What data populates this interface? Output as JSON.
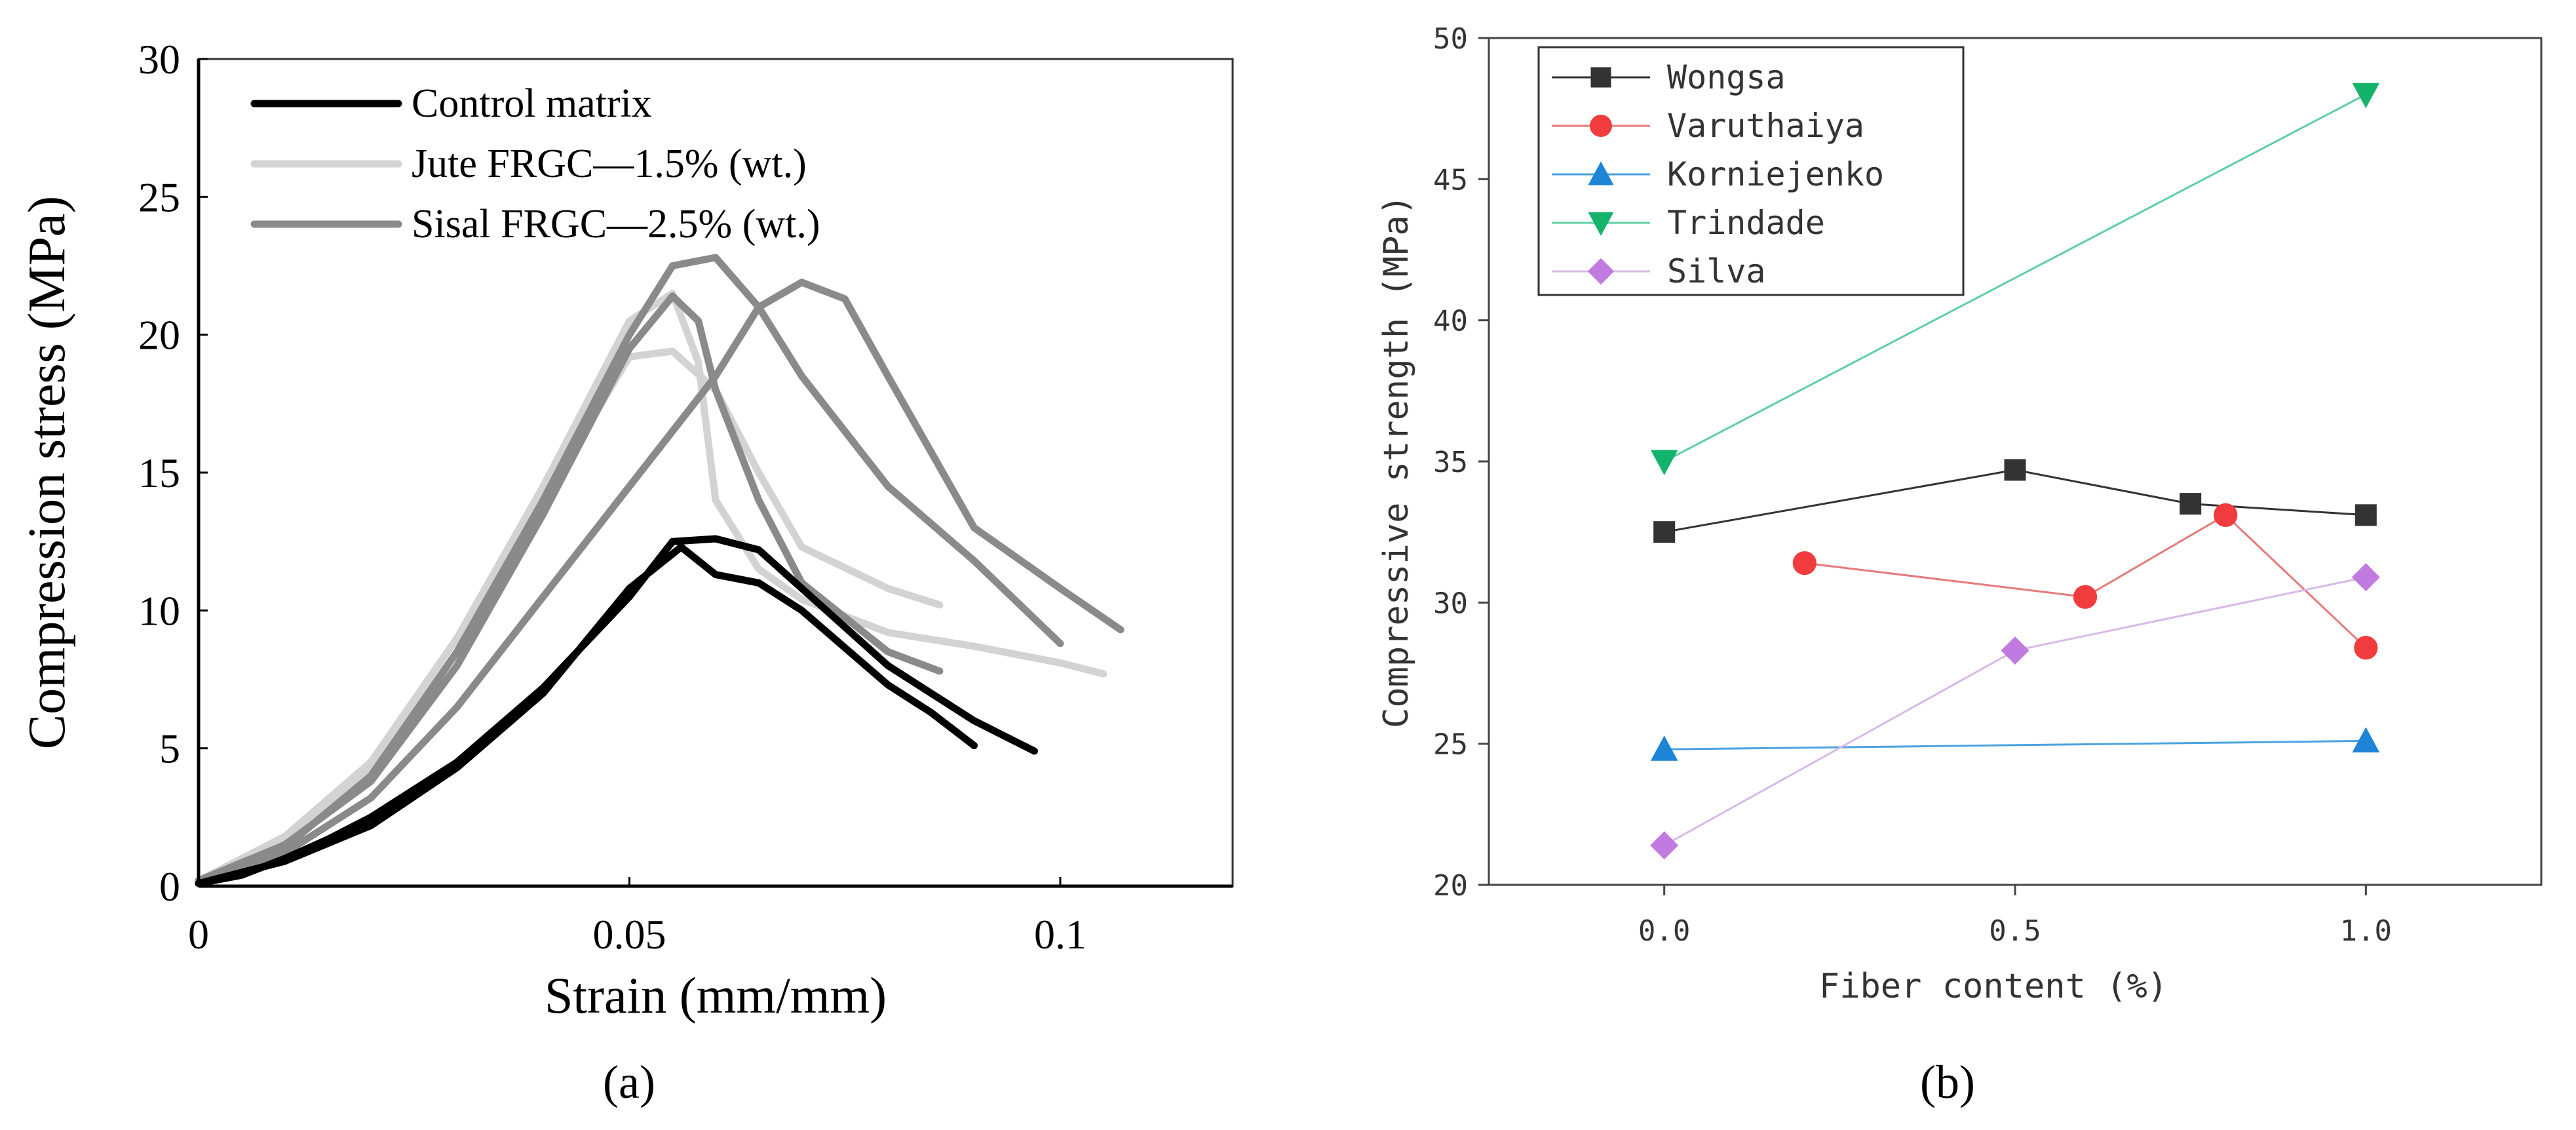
{
  "chart_data": [
    {
      "panel_label": "(a)",
      "type": "line",
      "xlabel": "Strain (mm/mm)",
      "ylabel": "Compression stress (MPa)",
      "xlim": [
        0,
        0.12
      ],
      "ylim": [
        0,
        30
      ],
      "xticks": [
        0,
        0.05,
        0.1
      ],
      "xtick_labels": [
        "0",
        "0.05",
        "0.1"
      ],
      "yticks": [
        0,
        5,
        10,
        15,
        20,
        25,
        30
      ],
      "ytick_labels": [
        "0",
        "5",
        "10",
        "15",
        "20",
        "25",
        "30"
      ],
      "legend": [
        {
          "label": "Control matrix",
          "color": "#000000"
        },
        {
          "label": "Jute FRGC—1.5% (wt.)",
          "color": "#d3d3d3"
        },
        {
          "label": "Sisal FRGC—2.5% (wt.)",
          "color": "#8a8a8a"
        }
      ],
      "series": [
        {
          "name": "Control matrix",
          "color": "#000000",
          "points": [
            [
              0,
              0.1
            ],
            [
              0.005,
              0.4
            ],
            [
              0.01,
              1.0
            ],
            [
              0.015,
              1.7
            ],
            [
              0.02,
              2.5
            ],
            [
              0.03,
              4.5
            ],
            [
              0.04,
              7.2
            ],
            [
              0.05,
              10.5
            ],
            [
              0.055,
              12.5
            ],
            [
              0.06,
              12.6
            ],
            [
              0.065,
              12.2
            ],
            [
              0.07,
              10.8
            ],
            [
              0.08,
              8.0
            ],
            [
              0.09,
              6.0
            ],
            [
              0.097,
              4.9
            ]
          ]
        },
        {
          "name": "Control matrix",
          "color": "#000000",
          "points": [
            [
              0,
              0.1
            ],
            [
              0.01,
              0.9
            ],
            [
              0.02,
              2.2
            ],
            [
              0.03,
              4.3
            ],
            [
              0.04,
              7.0
            ],
            [
              0.05,
              10.8
            ],
            [
              0.056,
              12.3
            ],
            [
              0.06,
              11.3
            ],
            [
              0.065,
              11.0
            ],
            [
              0.07,
              10.0
            ],
            [
              0.08,
              7.3
            ],
            [
              0.085,
              6.3
            ],
            [
              0.09,
              5.1
            ]
          ]
        },
        {
          "name": "Jute FRGC—1.5% (wt.)",
          "color": "#d3d3d3",
          "points": [
            [
              0,
              0.2
            ],
            [
              0.01,
              1.8
            ],
            [
              0.02,
              4.5
            ],
            [
              0.03,
              9.0
            ],
            [
              0.04,
              14.5
            ],
            [
              0.05,
              20.5
            ],
            [
              0.055,
              21.5
            ],
            [
              0.058,
              19.0
            ],
            [
              0.06,
              14.0
            ],
            [
              0.065,
              11.5
            ],
            [
              0.07,
              10.4
            ],
            [
              0.08,
              9.2
            ],
            [
              0.09,
              8.7
            ],
            [
              0.1,
              8.1
            ],
            [
              0.105,
              7.7
            ]
          ]
        },
        {
          "name": "Jute FRGC—1.5% (wt.)",
          "color": "#d3d3d3",
          "points": [
            [
              0,
              0.2
            ],
            [
              0.01,
              1.6
            ],
            [
              0.02,
              4.2
            ],
            [
              0.03,
              8.5
            ],
            [
              0.04,
              14.0
            ],
            [
              0.05,
              19.2
            ],
            [
              0.055,
              19.4
            ],
            [
              0.06,
              18.0
            ],
            [
              0.065,
              15.0
            ],
            [
              0.07,
              12.3
            ],
            [
              0.08,
              10.8
            ],
            [
              0.086,
              10.2
            ]
          ]
        },
        {
          "name": "Sisal FRGC—2.5% (wt.)",
          "color": "#8a8a8a",
          "points": [
            [
              0,
              0.2
            ],
            [
              0.01,
              1.5
            ],
            [
              0.02,
              3.8
            ],
            [
              0.03,
              8.0
            ],
            [
              0.04,
              13.5
            ],
            [
              0.05,
              19.5
            ],
            [
              0.055,
              21.4
            ],
            [
              0.058,
              20.5
            ],
            [
              0.06,
              18.0
            ],
            [
              0.065,
              14.0
            ],
            [
              0.07,
              11.0
            ],
            [
              0.08,
              8.5
            ],
            [
              0.086,
              7.8
            ]
          ]
        },
        {
          "name": "Sisal FRGC—2.5% (wt.)",
          "color": "#8a8a8a",
          "points": [
            [
              0,
              0.2
            ],
            [
              0.01,
              1.4
            ],
            [
              0.02,
              4.0
            ],
            [
              0.03,
              8.5
            ],
            [
              0.04,
              14.0
            ],
            [
              0.05,
              20.0
            ],
            [
              0.055,
              22.5
            ],
            [
              0.06,
              22.8
            ],
            [
              0.065,
              21.0
            ],
            [
              0.07,
              18.5
            ],
            [
              0.08,
              14.5
            ],
            [
              0.09,
              11.8
            ],
            [
              0.1,
              8.8
            ]
          ]
        },
        {
          "name": "Sisal FRGC—2.5% (wt.)",
          "color": "#8a8a8a",
          "points": [
            [
              0,
              0.2
            ],
            [
              0.01,
              1.2
            ],
            [
              0.02,
              3.2
            ],
            [
              0.03,
              6.5
            ],
            [
              0.04,
              10.5
            ],
            [
              0.05,
              14.5
            ],
            [
              0.06,
              18.5
            ],
            [
              0.065,
              21.0
            ],
            [
              0.07,
              21.9
            ],
            [
              0.075,
              21.3
            ],
            [
              0.08,
              18.5
            ],
            [
              0.09,
              13.0
            ],
            [
              0.1,
              10.8
            ],
            [
              0.107,
              9.3
            ]
          ]
        }
      ]
    },
    {
      "panel_label": "(b)",
      "type": "line",
      "xlabel": "Fiber content (%)",
      "ylabel": "Compressive strength (MPa)",
      "xlim": [
        -0.25,
        1.25
      ],
      "ylim": [
        20,
        50
      ],
      "xticks": [
        0,
        0.5,
        1.0
      ],
      "xtick_labels": [
        "0.0",
        "0.5",
        "1.0"
      ],
      "yticks": [
        20,
        25,
        30,
        35,
        40,
        45,
        50
      ],
      "ytick_labels": [
        "20",
        "25",
        "30",
        "35",
        "40",
        "45",
        "50"
      ],
      "series": [
        {
          "name": "Wongsa",
          "color": "#333333",
          "line_color": "#333333",
          "marker": "square",
          "x": [
            0,
            0.5,
            0.75,
            1.0
          ],
          "y": [
            32.5,
            34.7,
            33.5,
            33.1
          ]
        },
        {
          "name": "Varuthaiya",
          "color": "#f03c3c",
          "line_color": "#e67a7a",
          "marker": "circle",
          "x": [
            0.2,
            0.6,
            0.8,
            1.0
          ],
          "y": [
            31.4,
            30.2,
            33.1,
            28.4
          ]
        },
        {
          "name": "Korniejenko",
          "color": "#1d84d6",
          "line_color": "#4aa3e0",
          "marker": "triangle-up",
          "x": [
            0,
            1.0
          ],
          "y": [
            24.8,
            25.1
          ]
        },
        {
          "name": "Trindade",
          "color": "#14b36b",
          "line_color": "#5fcfa2",
          "marker": "triangle-down",
          "x": [
            0,
            1.0
          ],
          "y": [
            35.0,
            48.0
          ]
        },
        {
          "name": "Silva",
          "color": "#c07ae0",
          "line_color": "#d8b9e6",
          "marker": "diamond",
          "x": [
            0,
            0.5,
            1.0
          ],
          "y": [
            21.4,
            28.3,
            30.9
          ]
        }
      ]
    }
  ]
}
